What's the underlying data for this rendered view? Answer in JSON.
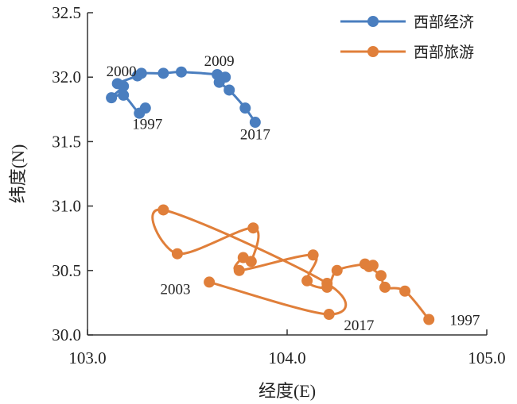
{
  "chart_data": {
    "type": "line",
    "xlabel": "经度(E)",
    "ylabel": "纬度(N)",
    "xlim": [
      103.0,
      105.0
    ],
    "ylim": [
      30.0,
      32.5
    ],
    "xticks": [
      "103.0",
      "104.0",
      "105.0"
    ],
    "yticks": [
      "30.0",
      "30.5",
      "31.0",
      "31.5",
      "32.0",
      "32.5"
    ],
    "legend_position": "top-right",
    "grid": false,
    "series": [
      {
        "name": "西部经济",
        "color": "#4a7ebf",
        "points": [
          [
            103.29,
            31.76
          ],
          [
            103.26,
            31.72
          ],
          [
            103.18,
            31.86
          ],
          [
            103.12,
            31.84
          ],
          [
            103.18,
            31.93
          ],
          [
            103.15,
            31.95
          ],
          [
            103.25,
            32.01
          ],
          [
            103.27,
            32.03
          ],
          [
            103.38,
            32.03
          ],
          [
            103.47,
            32.04
          ],
          [
            103.65,
            32.02
          ],
          [
            103.69,
            32.0
          ],
          [
            103.66,
            31.96
          ],
          [
            103.71,
            31.9
          ],
          [
            103.79,
            31.76
          ],
          [
            103.84,
            31.65
          ]
        ]
      },
      {
        "name": "西部旅游",
        "color": "#e07f3a",
        "points": [
          [
            104.71,
            30.12
          ],
          [
            104.59,
            30.34
          ],
          [
            104.49,
            30.37
          ],
          [
            104.47,
            30.46
          ],
          [
            104.41,
            30.53
          ],
          [
            104.43,
            30.54
          ],
          [
            104.39,
            30.55
          ],
          [
            104.25,
            30.5
          ],
          [
            104.2,
            30.37
          ],
          [
            104.1,
            30.42
          ],
          [
            104.13,
            30.62
          ],
          [
            103.76,
            30.5
          ],
          [
            103.78,
            30.6
          ],
          [
            103.82,
            30.57
          ],
          [
            103.83,
            30.83
          ],
          [
            103.45,
            30.63
          ],
          [
            103.38,
            30.97
          ],
          [
            104.2,
            30.4
          ],
          [
            104.21,
            30.16
          ],
          [
            103.61,
            30.41
          ]
        ]
      }
    ],
    "annotations": [
      {
        "text": "2000",
        "x": 103.17,
        "y": 32.05
      },
      {
        "text": "1997",
        "x": 103.3,
        "y": 31.64
      },
      {
        "text": "2009",
        "x": 103.66,
        "y": 32.13
      },
      {
        "text": "2017",
        "x": 103.84,
        "y": 31.56
      },
      {
        "text": "2003",
        "x": 103.44,
        "y": 30.36
      },
      {
        "text": "2017",
        "x": 104.36,
        "y": 30.08
      },
      {
        "text": "1997",
        "x": 104.89,
        "y": 30.12
      }
    ]
  }
}
